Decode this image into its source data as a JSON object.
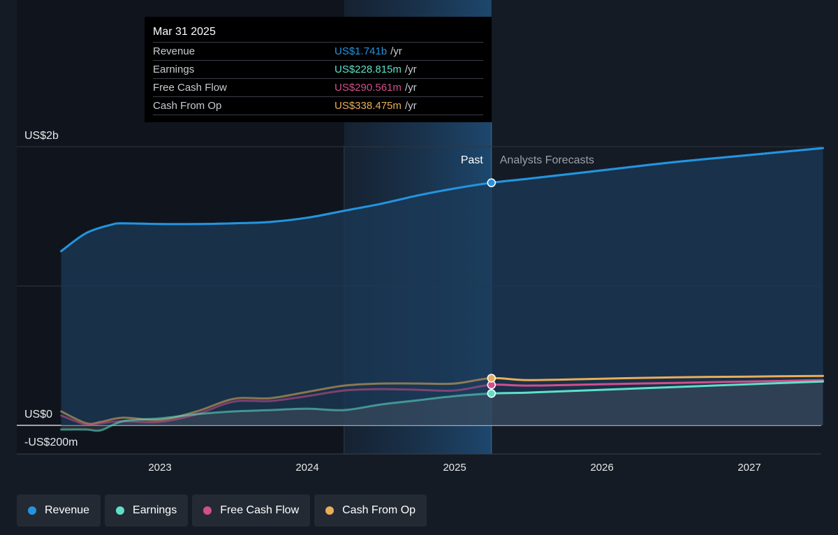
{
  "tooltip": {
    "date": "Mar 31 2025",
    "rows": [
      {
        "label": "Revenue",
        "value": "US$1.741b",
        "unit": "/yr",
        "color": "#2394df"
      },
      {
        "label": "Earnings",
        "value": "US$228.815m",
        "unit": "/yr",
        "color": "#5ee0c8"
      },
      {
        "label": "Free Cash Flow",
        "value": "US$290.561m",
        "unit": "/yr",
        "color": "#d14f8c"
      },
      {
        "label": "Cash From Op",
        "value": "US$338.475m",
        "unit": "/yr",
        "color": "#e8ae5a"
      }
    ]
  },
  "chart_data": {
    "type": "line",
    "y_labels": {
      "top": "US$2b",
      "zero": "US$0",
      "bottom": "-US$200m"
    },
    "ylim": [
      -200,
      2000
    ],
    "gridlines": [
      0,
      1000,
      2000
    ],
    "xlim": [
      2022.33,
      2027.5
    ],
    "x_ticks": [
      2023,
      2024,
      2025,
      2026,
      2027
    ],
    "past_label": "Past",
    "forecast_label": "Analysts Forecasts",
    "forecast_start": 2025.25,
    "highlight_start": 2024.25,
    "series": [
      {
        "name": "Revenue",
        "color": "#2394df",
        "points": [
          [
            2022.33,
            1250
          ],
          [
            2022.5,
            1380
          ],
          [
            2022.67,
            1440
          ],
          [
            2022.75,
            1450
          ],
          [
            2023,
            1445
          ],
          [
            2023.25,
            1445
          ],
          [
            2023.5,
            1450
          ],
          [
            2023.75,
            1460
          ],
          [
            2024,
            1490
          ],
          [
            2024.25,
            1540
          ],
          [
            2024.5,
            1590
          ],
          [
            2024.75,
            1650
          ],
          [
            2025,
            1700
          ],
          [
            2025.25,
            1741
          ],
          [
            2025.5,
            1770
          ],
          [
            2026,
            1830
          ],
          [
            2026.5,
            1890
          ],
          [
            2027,
            1940
          ],
          [
            2027.5,
            1990
          ]
        ]
      },
      {
        "name": "Earnings",
        "color": "#5ee0c8",
        "points": [
          [
            2022.33,
            -30
          ],
          [
            2022.5,
            -30
          ],
          [
            2022.6,
            -35
          ],
          [
            2022.75,
            30
          ],
          [
            2023,
            50
          ],
          [
            2023.25,
            80
          ],
          [
            2023.5,
            100
          ],
          [
            2023.75,
            110
          ],
          [
            2024,
            120
          ],
          [
            2024.25,
            110
          ],
          [
            2024.5,
            150
          ],
          [
            2024.75,
            180
          ],
          [
            2025,
            210
          ],
          [
            2025.25,
            228.8
          ],
          [
            2025.5,
            235
          ],
          [
            2026,
            255
          ],
          [
            2026.5,
            275
          ],
          [
            2027,
            295
          ],
          [
            2027.5,
            315
          ]
        ]
      },
      {
        "name": "Free Cash Flow",
        "color": "#d14f8c",
        "points": [
          [
            2022.33,
            70
          ],
          [
            2022.5,
            5
          ],
          [
            2022.6,
            15
          ],
          [
            2022.75,
            30
          ],
          [
            2023,
            25
          ],
          [
            2023.25,
            80
          ],
          [
            2023.5,
            170
          ],
          [
            2023.75,
            175
          ],
          [
            2024,
            210
          ],
          [
            2024.25,
            250
          ],
          [
            2024.5,
            260
          ],
          [
            2024.75,
            255
          ],
          [
            2025,
            250
          ],
          [
            2025.25,
            290.6
          ],
          [
            2025.5,
            285
          ],
          [
            2026,
            295
          ],
          [
            2026.5,
            305
          ],
          [
            2027,
            315
          ],
          [
            2027.5,
            325
          ]
        ]
      },
      {
        "name": "Cash From Op",
        "color": "#e8ae5a",
        "points": [
          [
            2022.33,
            100
          ],
          [
            2022.5,
            15
          ],
          [
            2022.6,
            25
          ],
          [
            2022.75,
            55
          ],
          [
            2023,
            40
          ],
          [
            2023.25,
            100
          ],
          [
            2023.5,
            190
          ],
          [
            2023.75,
            195
          ],
          [
            2024,
            240
          ],
          [
            2024.25,
            285
          ],
          [
            2024.5,
            300
          ],
          [
            2024.75,
            300
          ],
          [
            2025,
            300
          ],
          [
            2025.25,
            338.5
          ],
          [
            2025.5,
            325
          ],
          [
            2026,
            335
          ],
          [
            2026.5,
            345
          ],
          [
            2027,
            350
          ],
          [
            2027.5,
            355
          ]
        ]
      }
    ]
  },
  "legend": [
    {
      "label": "Revenue",
      "color": "#2394df"
    },
    {
      "label": "Earnings",
      "color": "#5ee0c8"
    },
    {
      "label": "Free Cash Flow",
      "color": "#d14f8c"
    },
    {
      "label": "Cash From Op",
      "color": "#e8ae5a"
    }
  ]
}
